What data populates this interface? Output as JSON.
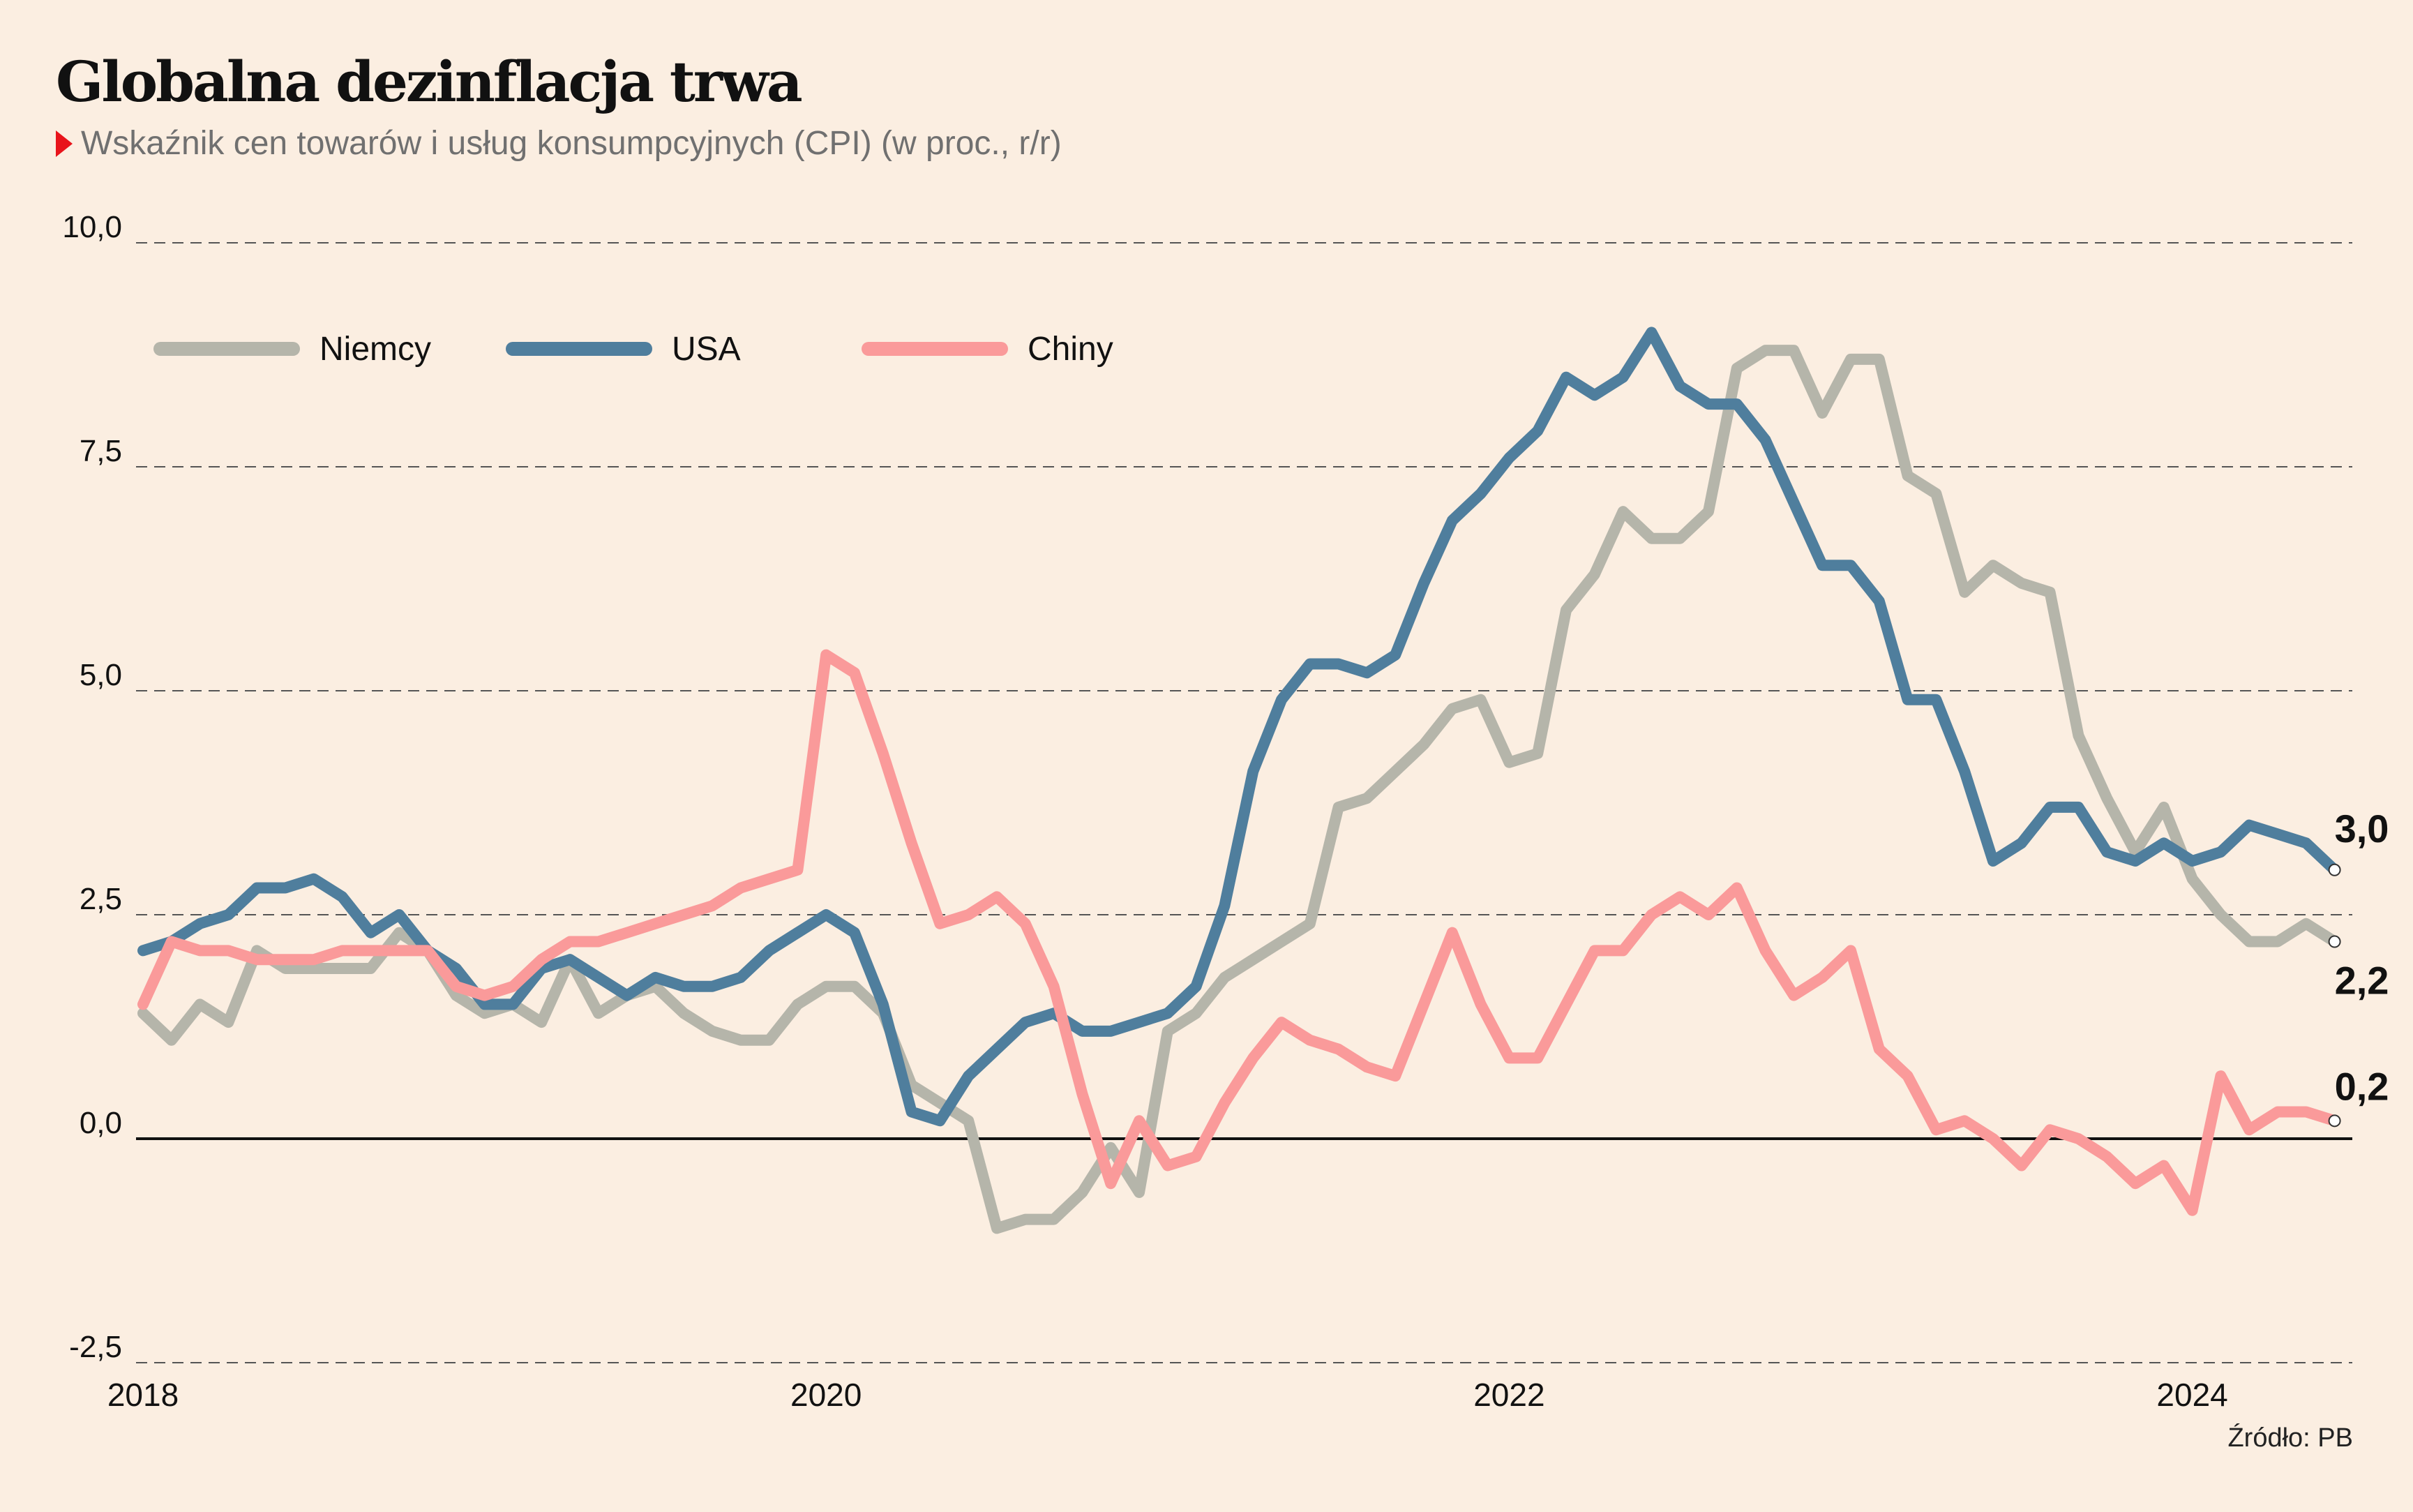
{
  "title": "Globalna dezinflacja trwa",
  "subtitle": "Wskaźnik cen towarów i usług konsumpcyjnych (CPI) (w proc., r/r)",
  "source": "Źródło: PB",
  "chart_data": {
    "type": "line",
    "title": "Globalna dezinflacja trwa",
    "subtitle": "Wskaźnik cen towarów i usług konsumpcyjnych (CPI) (w proc., r/r)",
    "xlabel": "",
    "ylabel": "",
    "x_start": "2018-01",
    "x_step": "month",
    "x_ticks": [
      "2018",
      "2020",
      "2022",
      "2024"
    ],
    "y_ticks": [
      "-2,5",
      "0,0",
      "2,5",
      "5,0",
      "7,5",
      "10,0"
    ],
    "ylim": [
      -2.5,
      10.0
    ],
    "grid": true,
    "legend": "top-left",
    "series": [
      {
        "name": "Niemcy",
        "color": "#b5b5aa",
        "end_label": "2,2",
        "values": [
          1.4,
          1.1,
          1.5,
          1.3,
          2.1,
          1.9,
          1.9,
          1.9,
          1.9,
          2.3,
          2.1,
          1.6,
          1.4,
          1.5,
          1.3,
          2.0,
          1.4,
          1.6,
          1.7,
          1.4,
          1.2,
          1.1,
          1.1,
          1.5,
          1.7,
          1.7,
          1.4,
          0.6,
          0.4,
          0.2,
          -1.0,
          -0.9,
          -0.9,
          -0.6,
          -0.1,
          -0.6,
          1.2,
          1.4,
          1.8,
          2.0,
          2.2,
          2.4,
          3.7,
          3.8,
          4.1,
          4.4,
          4.8,
          4.9,
          4.2,
          4.3,
          5.9,
          6.3,
          7.0,
          6.7,
          6.7,
          7.0,
          8.6,
          8.8,
          8.8,
          8.1,
          8.7,
          8.7,
          7.4,
          7.2,
          6.1,
          6.4,
          6.2,
          6.1,
          4.5,
          3.8,
          3.2,
          3.7,
          2.9,
          2.5,
          2.2,
          2.2,
          2.4,
          2.2
        ]
      },
      {
        "name": "USA",
        "color": "#4f7e9d",
        "end_label": "3,0",
        "values": [
          2.1,
          2.2,
          2.4,
          2.5,
          2.8,
          2.8,
          2.9,
          2.7,
          2.3,
          2.5,
          2.1,
          1.9,
          1.5,
          1.5,
          1.9,
          2.0,
          1.8,
          1.6,
          1.8,
          1.7,
          1.7,
          1.8,
          2.1,
          2.3,
          2.5,
          2.3,
          1.5,
          0.3,
          0.2,
          0.7,
          1.0,
          1.3,
          1.4,
          1.2,
          1.2,
          1.3,
          1.4,
          1.7,
          2.6,
          4.1,
          4.9,
          5.3,
          5.3,
          5.2,
          5.4,
          6.2,
          6.9,
          7.2,
          7.6,
          7.9,
          8.5,
          8.3,
          8.5,
          9.0,
          8.4,
          8.2,
          8.2,
          7.8,
          7.1,
          6.4,
          6.4,
          6.0,
          4.9,
          4.9,
          4.1,
          3.1,
          3.3,
          3.7,
          3.7,
          3.2,
          3.1,
          3.3,
          3.1,
          3.2,
          3.5,
          3.4,
          3.3,
          3.0
        ]
      },
      {
        "name": "Chiny",
        "color": "#fa9a9a",
        "end_label": "0,2",
        "values": [
          1.5,
          2.2,
          2.1,
          2.1,
          2.0,
          2.0,
          2.0,
          2.1,
          2.1,
          2.1,
          2.1,
          1.7,
          1.6,
          1.7,
          2.0,
          2.2,
          2.2,
          2.3,
          2.4,
          2.5,
          2.6,
          2.8,
          2.9,
          3.0,
          5.4,
          5.2,
          4.3,
          3.3,
          2.4,
          2.5,
          2.7,
          2.4,
          1.7,
          0.5,
          -0.5,
          0.2,
          -0.3,
          -0.2,
          0.4,
          0.9,
          1.3,
          1.1,
          1.0,
          0.8,
          0.7,
          1.5,
          2.3,
          1.5,
          0.9,
          0.9,
          1.5,
          2.1,
          2.1,
          2.5,
          2.7,
          2.5,
          2.8,
          2.1,
          1.6,
          1.8,
          2.1,
          1.0,
          0.7,
          0.1,
          0.2,
          0.0,
          -0.3,
          0.1,
          0.0,
          -0.2,
          -0.5,
          -0.3,
          -0.8,
          0.7,
          0.1,
          0.3,
          0.3,
          0.2
        ]
      }
    ]
  }
}
